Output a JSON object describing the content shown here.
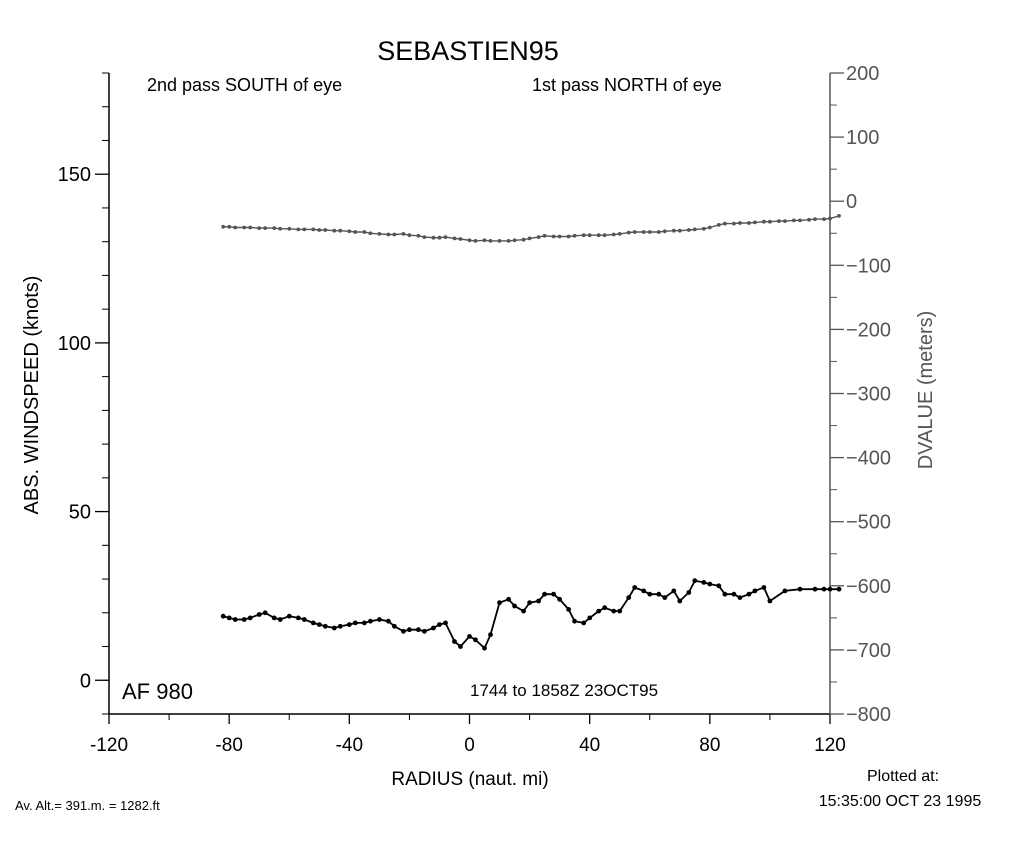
{
  "chart_data": {
    "type": "line",
    "title": "SEBASTIEN95",
    "annotations": {
      "left_pass": "2nd pass SOUTH of eye",
      "right_pass": "1st pass NORTH of eye",
      "aircraft": "AF 980",
      "time_range": "1744 to 1858Z 23OCT95",
      "altitude": "Av. Alt.=  391.m. =  1282.ft",
      "plotted_label": "Plotted at:",
      "plotted_time": "15:35:00 OCT 23 1995"
    },
    "xlabel": "RADIUS (naut. mi)",
    "ylabel_left": "ABS. WINDSPEED (knots)",
    "ylabel_right": "DVALUE (meters)",
    "xlim": [
      -120,
      120
    ],
    "ylim_left": [
      -10,
      180
    ],
    "ylim_right": [
      -800,
      200
    ],
    "x_ticks": [
      "-120",
      "-80",
      "-40",
      "0",
      "40",
      "80",
      "120"
    ],
    "x_tick_values": [
      -120,
      -80,
      -40,
      0,
      40,
      80,
      120
    ],
    "y_left_ticks": [
      "0",
      "50",
      "100",
      "150"
    ],
    "y_left_tick_values": [
      0,
      50,
      100,
      150
    ],
    "y_right_ticks": [
      "200",
      "100",
      "0",
      "−100",
      "−200",
      "−300",
      "−400",
      "−500",
      "−600",
      "−700",
      "−800"
    ],
    "y_right_tick_values": [
      200,
      100,
      0,
      -100,
      -200,
      -300,
      -400,
      -500,
      -600,
      -700,
      -800
    ],
    "colors": {
      "windspeed": "#000000",
      "dvalue": "#555555",
      "axis_right": "#555555"
    },
    "series": [
      {
        "axis": "left",
        "x": [
          -82,
          -80,
          -78,
          -75,
          -73,
          -70,
          -68,
          -65,
          -63,
          -60,
          -57,
          -55,
          -52,
          -50,
          -48,
          -45,
          -43,
          -40,
          -38,
          -35,
          -33,
          -30,
          -27,
          -25,
          -22,
          -20,
          -17,
          -15,
          -12,
          -10,
          -8,
          -5,
          -3,
          0,
          2,
          5,
          7,
          10,
          13,
          15,
          18,
          20,
          23,
          25,
          28,
          30,
          33,
          35,
          38,
          40,
          43,
          45,
          48,
          50,
          53,
          55,
          58,
          60,
          63,
          65,
          68,
          70,
          73,
          75,
          78,
          80,
          83,
          85,
          88,
          90,
          93,
          95,
          98,
          100,
          105,
          110,
          115,
          118,
          120,
          123
        ],
        "values": [
          19,
          18.5,
          18,
          18,
          18.5,
          19.5,
          20,
          18.5,
          18,
          19,
          18.5,
          18,
          17,
          16.5,
          16,
          15.5,
          16,
          16.5,
          17,
          17,
          17.5,
          18,
          17.5,
          16,
          14.5,
          15,
          15,
          14.5,
          15.5,
          16.5,
          17,
          11.5,
          10,
          13,
          12,
          9.5,
          13.5,
          23,
          24,
          22,
          20.5,
          23,
          23.5,
          25.5,
          25.5,
          24,
          21,
          17.5,
          17,
          18.5,
          20.5,
          21.5,
          20.5,
          20.5,
          24.5,
          27.5,
          26.5,
          25.5,
          25.5,
          24.5,
          26.5,
          23.5,
          26,
          29.5,
          29,
          28.5,
          28,
          25.5,
          25.5,
          24.5,
          25.5,
          26.5,
          27.5,
          23.5,
          26.5,
          27,
          27,
          27,
          27,
          27
        ]
      },
      {
        "axis": "right",
        "x": [
          -82,
          -80,
          -78,
          -75,
          -73,
          -70,
          -68,
          -65,
          -63,
          -60,
          -57,
          -55,
          -52,
          -50,
          -48,
          -45,
          -43,
          -40,
          -38,
          -35,
          -33,
          -30,
          -27,
          -25,
          -22,
          -20,
          -17,
          -15,
          -12,
          -10,
          -8,
          -5,
          -3,
          0,
          2,
          5,
          7,
          10,
          13,
          15,
          18,
          20,
          23,
          25,
          28,
          30,
          33,
          35,
          38,
          40,
          43,
          45,
          48,
          50,
          53,
          55,
          58,
          60,
          63,
          65,
          68,
          70,
          73,
          75,
          78,
          80,
          83,
          85,
          88,
          90,
          93,
          95,
          98,
          100,
          103,
          105,
          108,
          110,
          113,
          115,
          118,
          120,
          123
        ],
        "values": [
          -40,
          -40,
          -41,
          -41,
          -41,
          -42,
          -42,
          -42,
          -43,
          -43,
          -44,
          -44,
          -44,
          -45,
          -45,
          -46,
          -46,
          -47,
          -48,
          -48,
          -50,
          -51,
          -52,
          -52,
          -51,
          -53,
          -54,
          -56,
          -57,
          -57,
          -56,
          -58,
          -59,
          -61,
          -62,
          -61,
          -62,
          -62,
          -62,
          -61,
          -60,
          -58,
          -56,
          -54,
          -55,
          -55,
          -55,
          -54,
          -53,
          -53,
          -53,
          -53,
          -52,
          -51,
          -49,
          -48,
          -48,
          -48,
          -48,
          -47,
          -46,
          -46,
          -45,
          -44,
          -43,
          -41,
          -37,
          -35,
          -35,
          -34,
          -34,
          -33,
          -32,
          -32,
          -31,
          -31,
          -30,
          -30,
          -29,
          -28,
          -28,
          -27,
          -23
        ]
      }
    ]
  }
}
